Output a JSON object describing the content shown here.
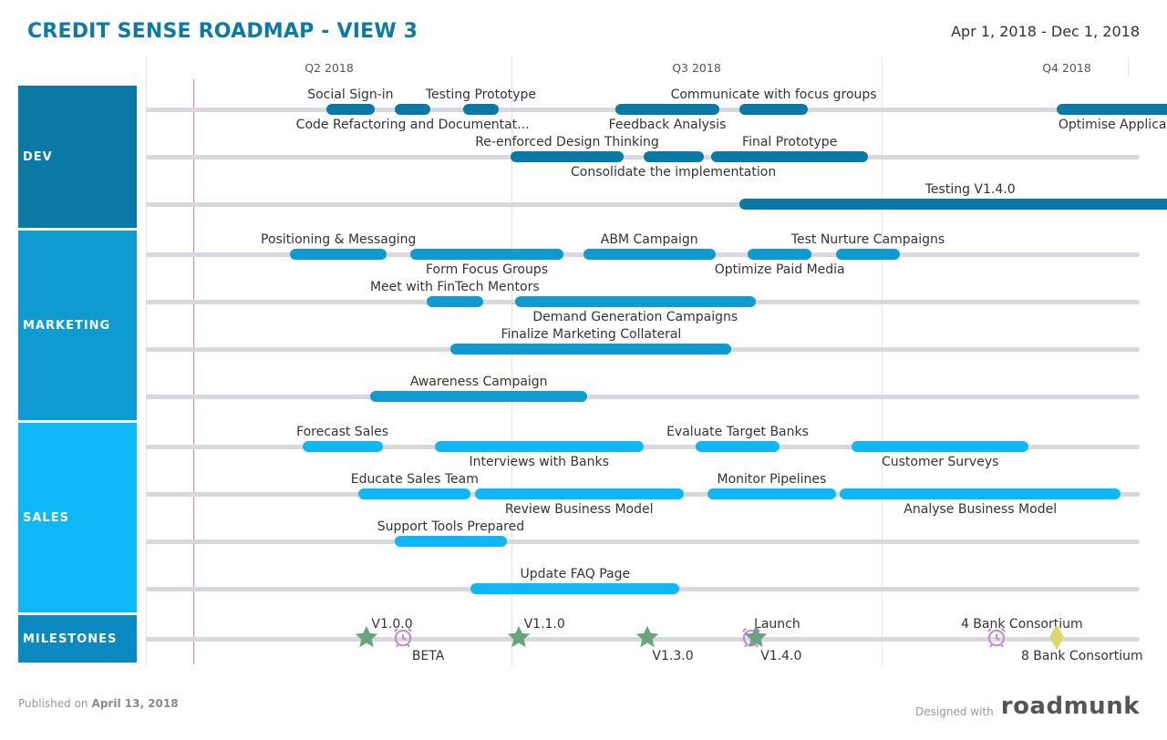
{
  "header": {
    "title": "CREDIT SENSE ROADMAP - VIEW 3",
    "date_range": "Apr 1, 2018 - Dec 1, 2018"
  },
  "quarters": [
    "Q2 2018",
    "Q3 2018",
    "Q4 2018"
  ],
  "groups": [
    {
      "name": "DEV",
      "color": "#0a79a6"
    },
    {
      "name": "MARKETING",
      "color": "#0d9bd1"
    },
    {
      "name": "SALES",
      "color": "#0eb7f5"
    },
    {
      "name": "MILESTONES",
      "color": "#0a8ac0"
    }
  ],
  "items": [
    {
      "label": "Social Sign-in",
      "start": "2018-05-16",
      "end": "2018-05-28",
      "group": "DEV"
    },
    {
      "label": "Code Refactoring and Documentat...",
      "start": "2018-06-02",
      "end": "2018-06-11",
      "group": "DEV"
    },
    {
      "label": "Testing Prototype",
      "start": "2018-06-19",
      "end": "2018-06-28",
      "group": "DEV"
    },
    {
      "label": "Feedback Analysis",
      "start": "2018-07-27",
      "end": "2018-08-22",
      "group": "DEV"
    },
    {
      "label": "Communicate with focus groups",
      "start": "2018-08-27",
      "end": "2018-09-13",
      "group": "DEV"
    },
    {
      "label": "Optimise Application",
      "start": "2018-11-14",
      "end": "2018-12-18",
      "group": "DEV"
    },
    {
      "label": "Re-enforced Design Thinking",
      "start": "2018-07-01",
      "end": "2018-07-29",
      "group": "DEV"
    },
    {
      "label": "Consolidate the implementation",
      "start": "2018-08-03",
      "end": "2018-08-18",
      "group": "DEV"
    },
    {
      "label": "Final Prototype",
      "start": "2018-08-20",
      "end": "2018-09-28",
      "group": "DEV"
    },
    {
      "label": "Testing V1.4.0",
      "start": "2018-08-27",
      "end": "2018-12-20",
      "group": "DEV"
    },
    {
      "label": "Positioning & Messaging",
      "start": "2018-05-07",
      "end": "2018-05-31",
      "group": "MARKETING"
    },
    {
      "label": "Form Focus Groups",
      "start": "2018-06-06",
      "end": "2018-07-14",
      "group": "MARKETING"
    },
    {
      "label": "ABM Campaign",
      "start": "2018-07-19",
      "end": "2018-08-21",
      "group": "MARKETING"
    },
    {
      "label": "Optimize Paid Media",
      "start": "2018-08-29",
      "end": "2018-09-14",
      "group": "MARKETING"
    },
    {
      "label": "Test Nurture Campaigns",
      "start": "2018-09-20",
      "end": "2018-10-06",
      "group": "MARKETING"
    },
    {
      "label": "Meet with FinTech Mentors",
      "start": "2018-06-10",
      "end": "2018-06-24",
      "group": "MARKETING"
    },
    {
      "label": "Demand Generation Campaigns",
      "start": "2018-07-02",
      "end": "2018-08-31",
      "group": "MARKETING"
    },
    {
      "label": "Finalize Marketing Collateral",
      "start": "2018-06-16",
      "end": "2018-08-25",
      "group": "MARKETING"
    },
    {
      "label": "Awareness Campaign",
      "start": "2018-05-27",
      "end": "2018-07-20",
      "group": "MARKETING"
    },
    {
      "label": "Forecast Sales",
      "start": "2018-05-10",
      "end": "2018-05-30",
      "group": "SALES"
    },
    {
      "label": "Interviews with Banks",
      "start": "2018-06-12",
      "end": "2018-08-03",
      "group": "SALES"
    },
    {
      "label": "Evaluate Target Banks",
      "start": "2018-08-16",
      "end": "2018-09-06",
      "group": "SALES"
    },
    {
      "label": "Customer Surveys",
      "start": "2018-09-24",
      "end": "2018-11-07",
      "group": "SALES"
    },
    {
      "label": "Educate Sales Team",
      "start": "2018-05-24",
      "end": "2018-06-21",
      "group": "SALES"
    },
    {
      "label": "Review Business Model",
      "start": "2018-06-22",
      "end": "2018-08-13",
      "group": "SALES"
    },
    {
      "label": "Monitor Pipelines",
      "start": "2018-08-19",
      "end": "2018-09-20",
      "group": "SALES"
    },
    {
      "label": "Analyse Business Model",
      "start": "2018-09-21",
      "end": "2018-11-30",
      "group": "SALES"
    },
    {
      "label": "Support Tools Prepared",
      "start": "2018-06-02",
      "end": "2018-06-30",
      "group": "SALES"
    },
    {
      "label": "Update FAQ Page",
      "start": "2018-06-21",
      "end": "2018-08-12",
      "group": "SALES"
    }
  ],
  "milestones": [
    {
      "label": "V1.0.0",
      "date": "2018-05-26",
      "type": "star"
    },
    {
      "label": "BETA",
      "date": "2018-06-04",
      "type": "alarm"
    },
    {
      "label": "V1.1.0",
      "date": "2018-07-03",
      "type": "star"
    },
    {
      "label": "V1.3.0",
      "date": "2018-08-04",
      "type": "star"
    },
    {
      "label": "Launch",
      "date": "2018-08-30",
      "type": "alarm"
    },
    {
      "label": "V1.4.0",
      "date": "2018-08-31",
      "type": "star"
    },
    {
      "label": "4 Bank Consortium",
      "date": "2018-10-30",
      "type": "alarm"
    },
    {
      "label": "8 Bank Consortium",
      "date": "2018-11-14",
      "type": "diamond"
    }
  ],
  "today": "2018-04-13",
  "footer": {
    "published_prefix": "Published on",
    "published_date": "April 13, 2018",
    "designed_with": "Designed with",
    "brand": "roadmunk"
  },
  "colors": {
    "dev": "#0a79a6",
    "marketing": "#0d9bd1",
    "sales": "#0eb7f5",
    "milestones": "#0a8ac0",
    "star": "#6aa47f",
    "alarm": "#c38ed8",
    "diamond": "#d9d86a",
    "title": "#0b7aa7"
  }
}
